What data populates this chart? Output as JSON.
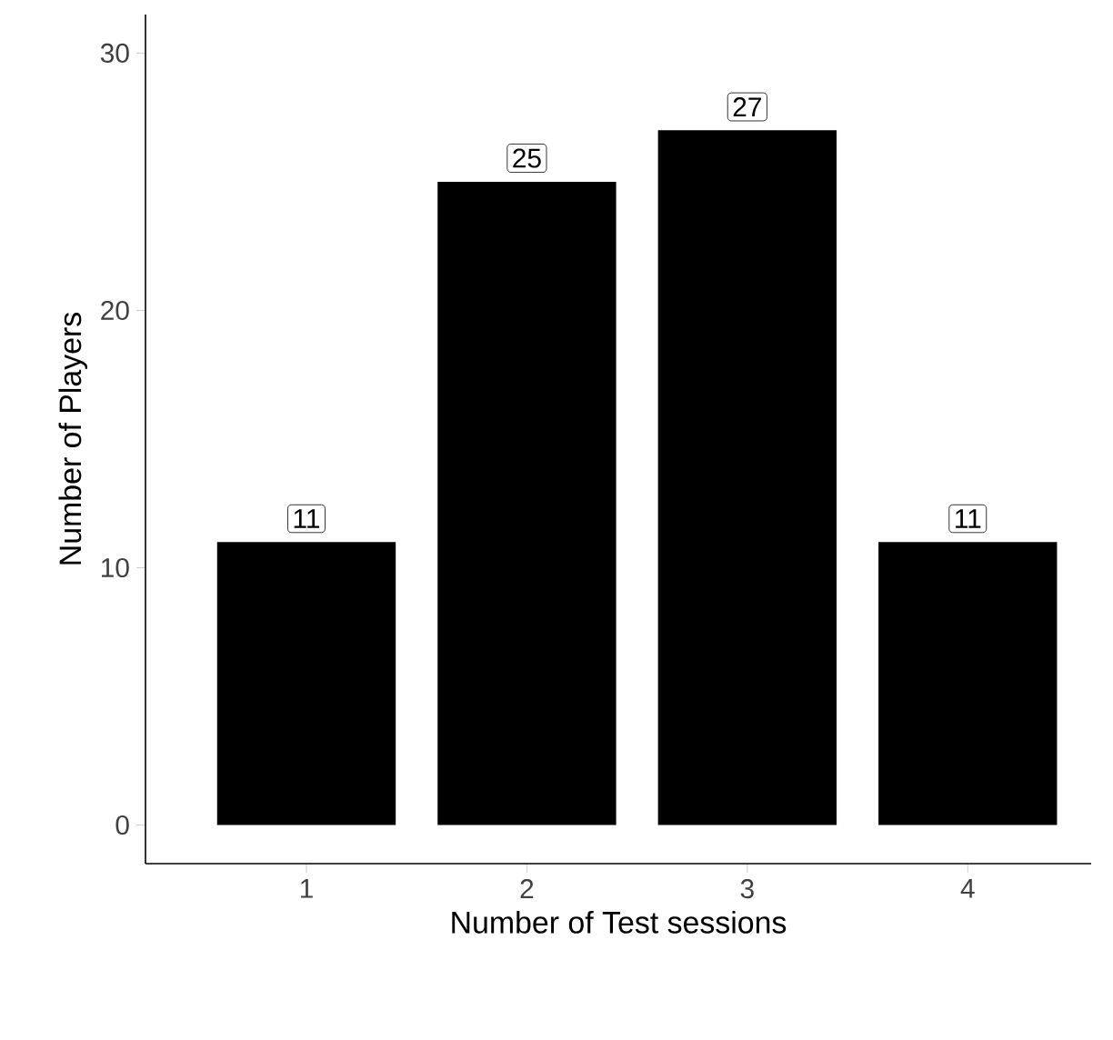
{
  "chart_data": {
    "type": "bar",
    "xlabel": "Number of Test sessions",
    "ylabel": "Number of Players",
    "categories": [
      "1",
      "2",
      "3",
      "4"
    ],
    "values": [
      11,
      25,
      27,
      11
    ],
    "color": "#000000",
    "ylim": [
      -1.5,
      31.5
    ],
    "yticks": [
      0,
      10,
      20,
      30
    ],
    "data_labels": true,
    "grid": false
  }
}
